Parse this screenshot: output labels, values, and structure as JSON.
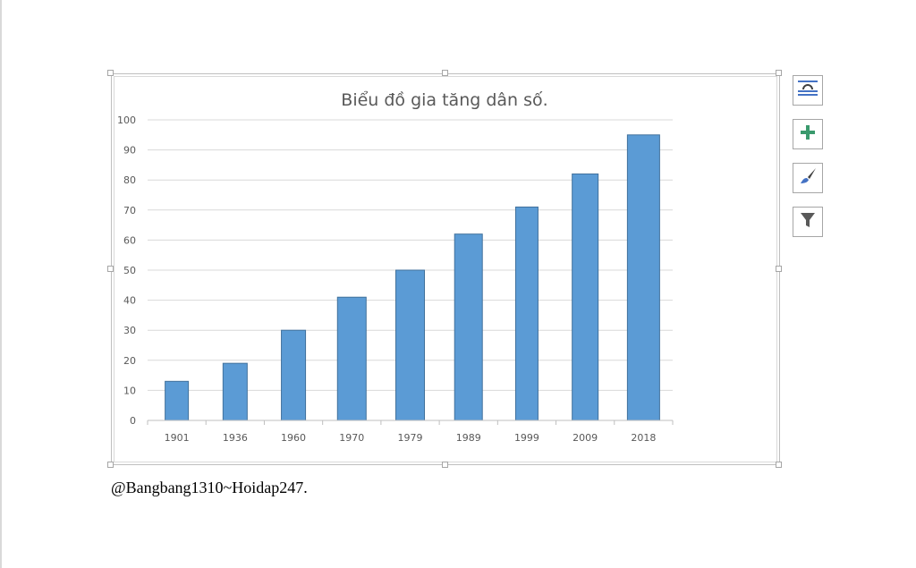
{
  "caption": "@Bangbang1310~Hoidap247.",
  "side_buttons": [
    {
      "icon": "layout-options-icon"
    },
    {
      "icon": "chart-elements-plus-icon"
    },
    {
      "icon": "chart-styles-brush-icon"
    },
    {
      "icon": "chart-filters-funnel-icon"
    }
  ],
  "colors": {
    "bar": "#5b9bd5",
    "bar_edge": "#41719c",
    "grid": "#d9d9d9",
    "plus": "#3a9a6d"
  },
  "chart_data": {
    "type": "bar",
    "title": "Biểu đồ gia tăng dân số.",
    "categories": [
      "1901",
      "1936",
      "1960",
      "1970",
      "1979",
      "1989",
      "1999",
      "2009",
      "2018"
    ],
    "values": [
      13,
      19,
      30,
      41,
      50,
      62,
      71,
      82,
      95
    ],
    "ylim": [
      0,
      100
    ],
    "yticks": [
      "0",
      "10",
      "20",
      "30",
      "40",
      "50",
      "60",
      "70",
      "80",
      "90",
      "100"
    ],
    "xlabel": "",
    "ylabel": "",
    "grid": true,
    "legend": "none"
  }
}
